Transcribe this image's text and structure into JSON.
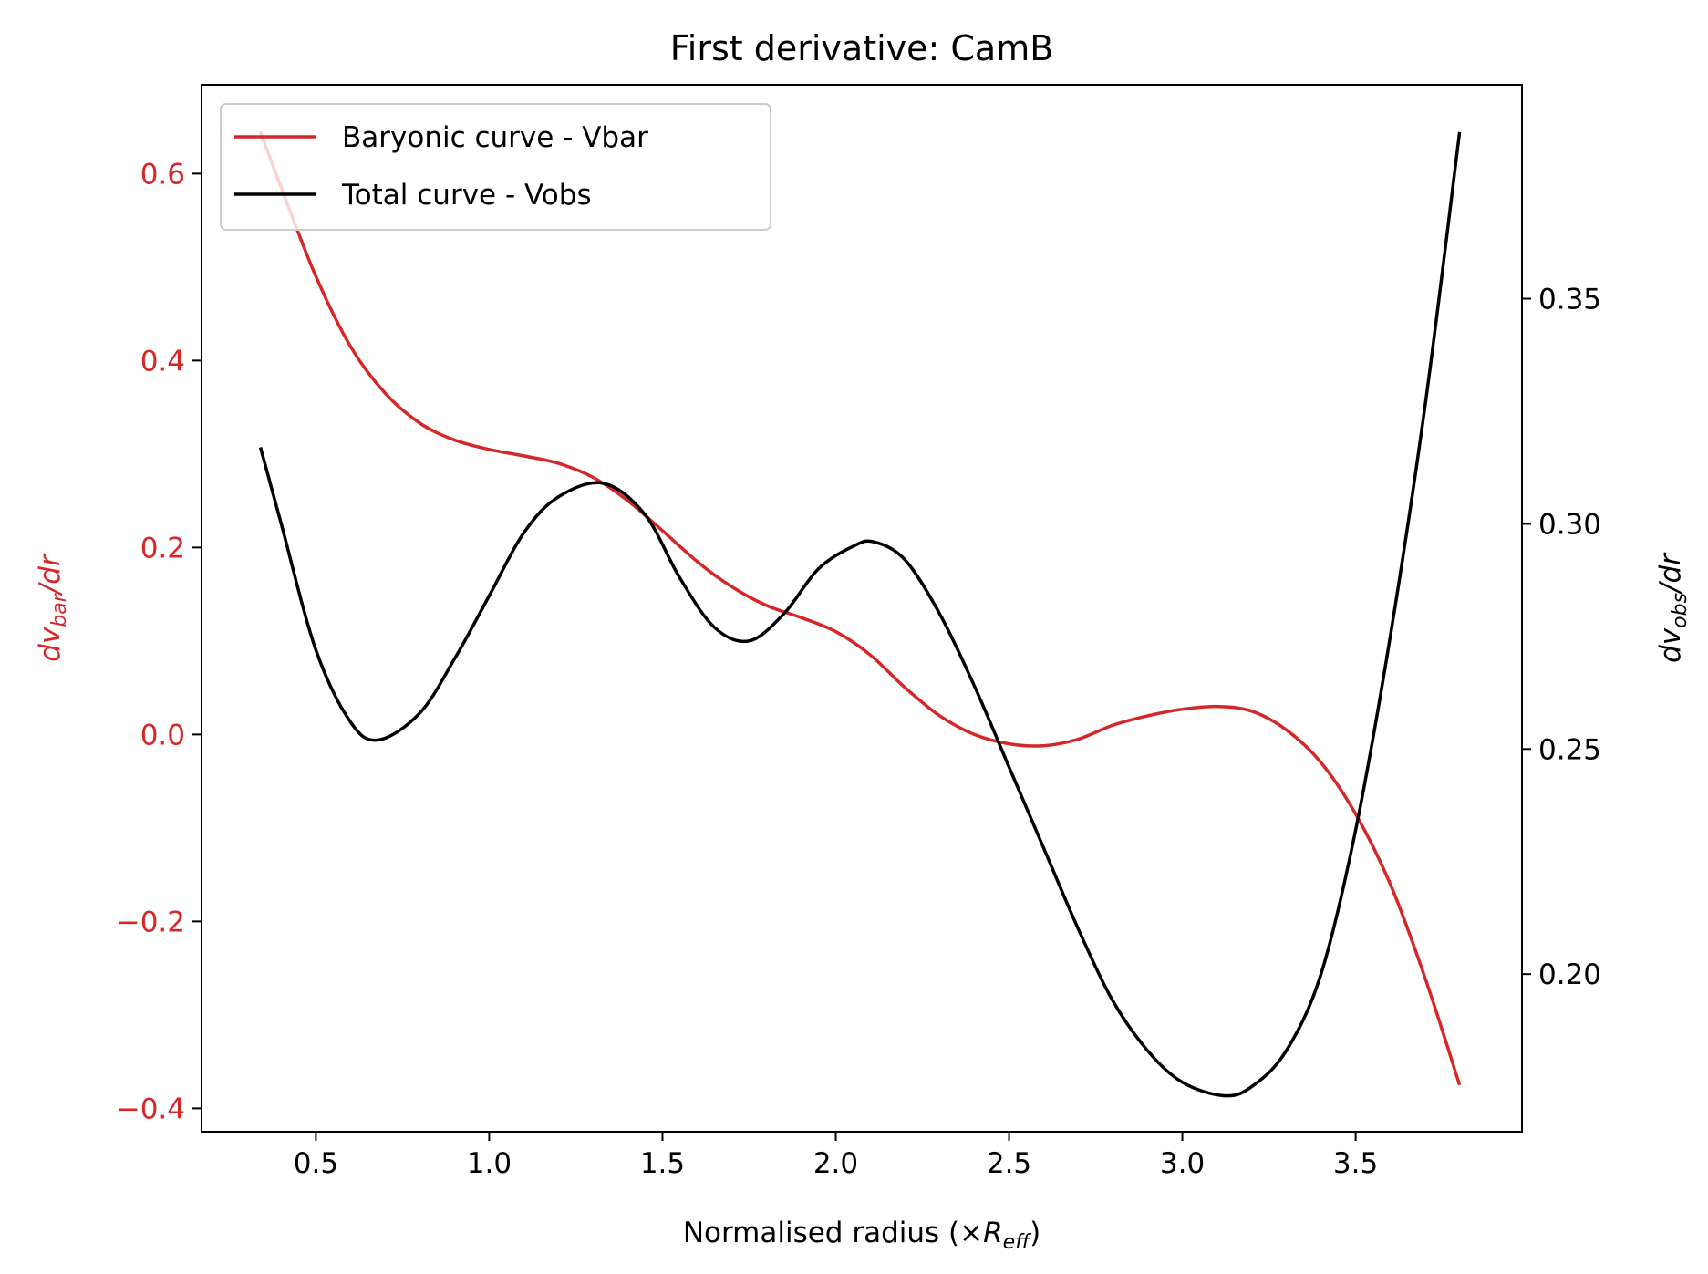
{
  "chart_data": {
    "type": "line",
    "title": "First derivative: CamB",
    "xlabel": {
      "prefix": "Normalised radius (×",
      "symbol": "R",
      "sub": "eff",
      "suffix": ")"
    },
    "ylabel_left": {
      "prefix": "dv",
      "sub": "bar",
      "suffix": "/dr"
    },
    "ylabel_right": {
      "prefix": "dv",
      "sub": "obs",
      "suffix": "/dr"
    },
    "xlim": [
      0.17,
      3.98
    ],
    "ylim_left": [
      -0.425,
      0.695
    ],
    "ylim_right": [
      0.165,
      0.3975
    ],
    "x_ticks": [
      "0.5",
      "1.0",
      "1.5",
      "2.0",
      "2.5",
      "3.0",
      "3.5"
    ],
    "left_ticks": [
      "−0.4",
      "−0.2",
      "0.0",
      "0.2",
      "0.4",
      "0.6"
    ],
    "right_ticks": [
      "0.20",
      "0.25",
      "0.30",
      "0.35"
    ],
    "grid": false,
    "legend_position": "top-left",
    "colors": {
      "vbar": "#d62728",
      "vobs": "#000000",
      "left_axis": "#d62728",
      "right_axis": "#000000"
    },
    "series": [
      {
        "name": "Baryonic curve - Vbar",
        "axis": "left",
        "color": "#d62728",
        "x": [
          0.34,
          0.4,
          0.5,
          0.6,
          0.7,
          0.8,
          0.9,
          1.0,
          1.1,
          1.2,
          1.3,
          1.4,
          1.5,
          1.6,
          1.7,
          1.8,
          1.9,
          2.0,
          2.1,
          2.2,
          2.3,
          2.4,
          2.5,
          2.6,
          2.7,
          2.8,
          2.9,
          3.0,
          3.1,
          3.2,
          3.3,
          3.4,
          3.5,
          3.6,
          3.7,
          3.8
        ],
        "y": [
          0.645,
          0.585,
          0.49,
          0.415,
          0.365,
          0.333,
          0.315,
          0.305,
          0.298,
          0.29,
          0.275,
          0.25,
          0.218,
          0.185,
          0.158,
          0.138,
          0.125,
          0.11,
          0.085,
          0.05,
          0.02,
          0.0,
          -0.01,
          -0.012,
          -0.005,
          0.01,
          0.02,
          0.027,
          0.03,
          0.025,
          0.005,
          -0.03,
          -0.085,
          -0.16,
          -0.26,
          -0.375
        ]
      },
      {
        "name": "Total curve - Vobs",
        "axis": "right",
        "color": "#000000",
        "x": [
          0.34,
          0.4,
          0.5,
          0.6,
          0.68,
          0.8,
          0.9,
          1.0,
          1.1,
          1.2,
          1.33,
          1.45,
          1.55,
          1.65,
          1.75,
          1.85,
          1.95,
          2.05,
          2.11,
          2.2,
          2.3,
          2.4,
          2.5,
          2.6,
          2.7,
          2.8,
          2.9,
          3.0,
          3.12,
          3.2,
          3.3,
          3.4,
          3.5,
          3.6,
          3.7,
          3.8
        ],
        "y": [
          0.317,
          0.3,
          0.272,
          0.256,
          0.252,
          0.258,
          0.27,
          0.284,
          0.298,
          0.306,
          0.309,
          0.302,
          0.288,
          0.277,
          0.274,
          0.28,
          0.29,
          0.295,
          0.296,
          0.292,
          0.28,
          0.264,
          0.246,
          0.228,
          0.21,
          0.194,
          0.183,
          0.176,
          0.173,
          0.175,
          0.183,
          0.2,
          0.232,
          0.275,
          0.326,
          0.387
        ]
      }
    ]
  }
}
